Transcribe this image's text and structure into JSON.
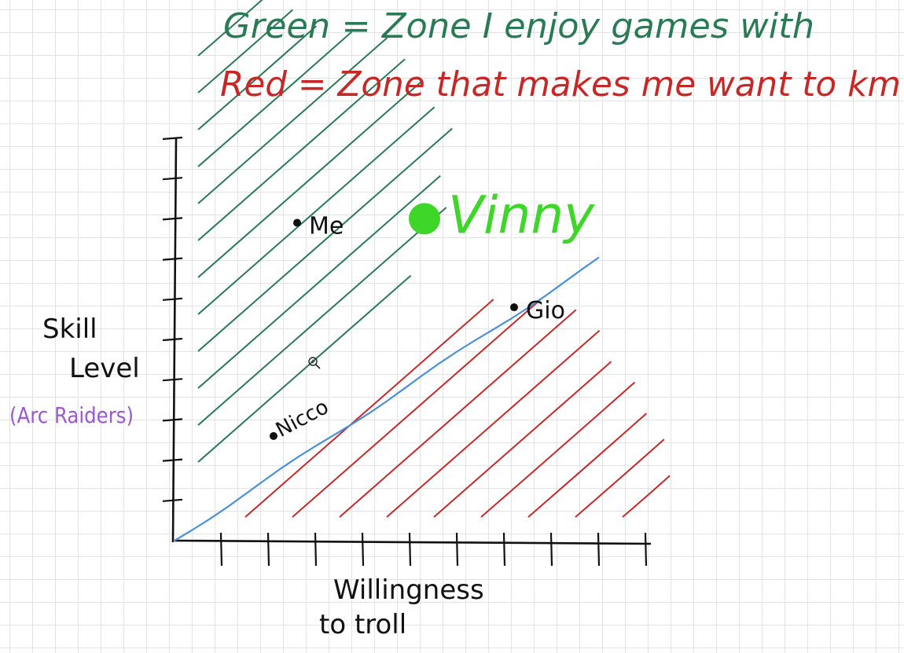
{
  "legend": {
    "green_label": "Green = Zone I enjoy games with",
    "red_label": "Red = Zone that makes me want to km",
    "green_color": "#2a7a55",
    "red_color": "#c62828"
  },
  "colors": {
    "boundary_line": "#4a90d9",
    "vinny_green": "#3fd62a",
    "axis": "#111111",
    "y_subtitle": "#9b59d0"
  },
  "chart_data": {
    "type": "scatter",
    "title": "",
    "xlabel": "Willingness to troll",
    "ylabel": "Skill Level",
    "ylabel_sub": "(Arc Raiders)",
    "x_ticks": 10,
    "y_ticks": 10,
    "xlim": [
      0,
      10
    ],
    "ylim": [
      0,
      10
    ],
    "grid": true,
    "boundary": {
      "name": "",
      "x": [
        0,
        9
      ],
      "y": [
        0,
        7
      ]
    },
    "zones": [
      {
        "side": "above",
        "color": "green",
        "meaning": "Zone I enjoy games with"
      },
      {
        "side": "below",
        "color": "red",
        "meaning": "Zone that makes me want to km"
      }
    ],
    "points": [
      {
        "label": "Me",
        "x": 2.6,
        "y": 7.9
      },
      {
        "label": "Vinny",
        "x": 5.3,
        "y": 8.0
      },
      {
        "label": "Gio",
        "x": 7.2,
        "y": 5.8
      },
      {
        "label": "Nicco",
        "x": 2.1,
        "y": 2.6
      }
    ]
  }
}
